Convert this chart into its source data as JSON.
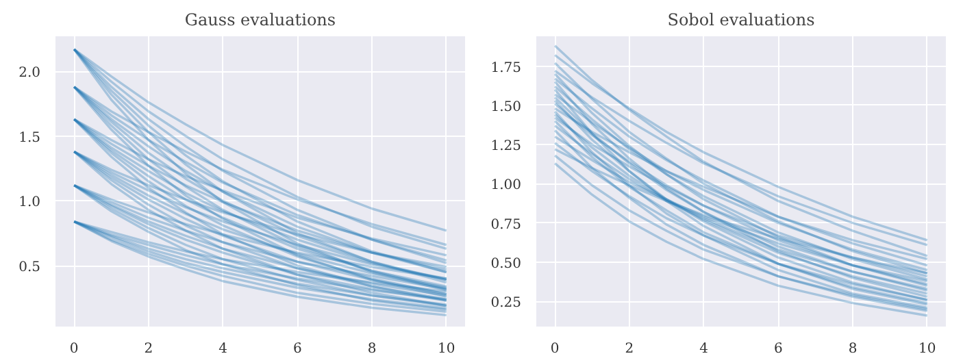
{
  "chart_data": [
    {
      "type": "line",
      "title": "Gauss evaluations",
      "color": "#1f77b4",
      "grid": true,
      "x": [
        0,
        1,
        2,
        3,
        4,
        6,
        8,
        10
      ],
      "xlim": [
        -0.5,
        10.5
      ],
      "xticks": [
        0,
        2,
        4,
        6,
        8,
        10
      ],
      "ylim": [
        0.03,
        2.27
      ],
      "yticks": [
        {
          "value": 0.5,
          "label": "0.5"
        },
        {
          "value": 1,
          "label": "1.0"
        },
        {
          "value": 1.5,
          "label": "1.5"
        },
        {
          "value": 2,
          "label": "2.0"
        }
      ],
      "series": [
        {
          "values": [
            0.84,
            0.76,
            0.68,
            0.61,
            0.55,
            0.45,
            0.37,
            0.3
          ]
        },
        {
          "values": [
            0.84,
            0.74,
            0.66,
            0.58,
            0.51,
            0.4,
            0.31,
            0.24
          ]
        },
        {
          "values": [
            0.84,
            0.73,
            0.63,
            0.55,
            0.48,
            0.36,
            0.27,
            0.2
          ]
        },
        {
          "values": [
            0.84,
            0.72,
            0.61,
            0.52,
            0.45,
            0.33,
            0.24,
            0.17
          ]
        },
        {
          "values": [
            0.84,
            0.7,
            0.59,
            0.5,
            0.42,
            0.29,
            0.205,
            0.144
          ]
        },
        {
          "values": [
            0.84,
            0.69,
            0.57,
            0.47,
            0.38,
            0.26,
            0.175,
            0.118
          ]
        },
        {
          "values": [
            1.12,
            1.01,
            0.91,
            0.82,
            0.74,
            0.6,
            0.49,
            0.4
          ]
        },
        {
          "values": [
            1.12,
            0.99,
            0.87,
            0.77,
            0.68,
            0.53,
            0.42,
            0.32
          ]
        },
        {
          "values": [
            1.12,
            0.97,
            0.84,
            0.73,
            0.63,
            0.48,
            0.36,
            0.27
          ]
        },
        {
          "values": [
            1.12,
            0.96,
            0.82,
            0.7,
            0.6,
            0.43,
            0.32,
            0.23
          ]
        },
        {
          "values": [
            1.12,
            0.94,
            0.79,
            0.66,
            0.55,
            0.39,
            0.27,
            0.19
          ]
        },
        {
          "values": [
            1.12,
            0.92,
            0.76,
            0.62,
            0.51,
            0.35,
            0.23,
            0.16
          ]
        },
        {
          "values": [
            1.38,
            1.24,
            1.12,
            1.01,
            0.91,
            0.74,
            0.6,
            0.49
          ]
        },
        {
          "values": [
            1.38,
            1.22,
            1.08,
            0.95,
            0.84,
            0.66,
            0.51,
            0.4
          ]
        },
        {
          "values": [
            1.38,
            1.2,
            1.04,
            0.9,
            0.78,
            0.59,
            0.44,
            0.33
          ]
        },
        {
          "values": [
            1.38,
            1.18,
            1.01,
            0.86,
            0.73,
            0.53,
            0.39,
            0.28
          ]
        },
        {
          "values": [
            1.38,
            1.16,
            0.97,
            0.81,
            0.68,
            0.48,
            0.34,
            0.24
          ]
        },
        {
          "values": [
            1.38,
            1.13,
            0.93,
            0.77,
            0.63,
            0.43,
            0.29,
            0.19
          ]
        },
        {
          "values": [
            1.63,
            1.47,
            1.32,
            1.19,
            1.08,
            0.87,
            0.71,
            0.58
          ]
        },
        {
          "values": [
            1.63,
            1.44,
            1.27,
            1.12,
            0.99,
            0.77,
            0.6,
            0.47
          ]
        },
        {
          "values": [
            1.63,
            1.41,
            1.23,
            1.06,
            0.92,
            0.7,
            0.52,
            0.39
          ]
        },
        {
          "values": [
            1.63,
            1.39,
            1.19,
            1.01,
            0.87,
            0.63,
            0.46,
            0.34
          ]
        },
        {
          "values": [
            1.63,
            1.37,
            1.15,
            0.96,
            0.81,
            0.57,
            0.4,
            0.28
          ]
        },
        {
          "values": [
            1.63,
            1.34,
            1.1,
            0.91,
            0.74,
            0.5,
            0.34,
            0.23
          ]
        },
        {
          "values": [
            1.88,
            1.69,
            1.53,
            1.38,
            1.24,
            1.01,
            0.82,
            0.66
          ]
        },
        {
          "values": [
            1.88,
            1.66,
            1.47,
            1.3,
            1.14,
            0.89,
            0.7,
            0.54
          ]
        },
        {
          "values": [
            1.88,
            1.63,
            1.42,
            1.23,
            1.07,
            0.8,
            0.6,
            0.45
          ]
        },
        {
          "values": [
            1.88,
            1.61,
            1.37,
            1.17,
            1.0,
            0.73,
            0.53,
            0.39
          ]
        },
        {
          "values": [
            1.88,
            1.58,
            1.32,
            1.11,
            0.93,
            0.65,
            0.46,
            0.32
          ]
        },
        {
          "values": [
            1.88,
            1.55,
            1.27,
            1.04,
            0.86,
            0.58,
            0.39,
            0.26
          ]
        },
        {
          "values": [
            2.17,
            1.96,
            1.76,
            1.59,
            1.43,
            1.16,
            0.94,
            0.77
          ]
        },
        {
          "values": [
            2.17,
            1.92,
            1.69,
            1.5,
            1.32,
            1.03,
            0.8,
            0.63
          ]
        },
        {
          "values": [
            2.17,
            1.88,
            1.63,
            1.42,
            1.23,
            0.93,
            0.7,
            0.52
          ]
        },
        {
          "values": [
            2.17,
            1.85,
            1.58,
            1.35,
            1.15,
            0.84,
            0.61,
            0.45
          ]
        },
        {
          "values": [
            2.17,
            1.82,
            1.53,
            1.28,
            1.07,
            0.75,
            0.53,
            0.37
          ]
        },
        {
          "values": [
            2.17,
            1.78,
            1.47,
            1.21,
            0.99,
            0.67,
            0.45,
            0.31
          ]
        }
      ]
    },
    {
      "type": "line",
      "title": "Sobol evaluations",
      "color": "#1f77b4",
      "grid": true,
      "x": [
        0,
        1,
        2,
        3,
        4,
        6,
        8,
        10
      ],
      "xlim": [
        -0.5,
        10.5
      ],
      "xticks": [
        0,
        2,
        4,
        6,
        8,
        10
      ],
      "ylim": [
        0.09,
        1.94
      ],
      "yticks": [
        {
          "value": 0.25,
          "label": "0.25"
        },
        {
          "value": 0.5,
          "label": "0.50"
        },
        {
          "value": 0.75,
          "label": "0.75"
        },
        {
          "value": 1,
          "label": "1.00"
        },
        {
          "value": 1.25,
          "label": "1.25"
        },
        {
          "value": 1.5,
          "label": "1.50"
        },
        {
          "value": 1.75,
          "label": "1.75"
        }
      ],
      "series": [
        {
          "values": [
            1.88,
            1.66,
            1.47,
            1.3,
            1.14,
            0.89,
            0.7,
            0.54
          ]
        },
        {
          "values": [
            1.82,
            1.64,
            1.48,
            1.33,
            1.2,
            0.98,
            0.79,
            0.64
          ]
        },
        {
          "values": [
            1.77,
            1.54,
            1.33,
            1.16,
            1.0,
            0.76,
            0.57,
            0.43
          ]
        },
        {
          "values": [
            1.72,
            1.55,
            1.4,
            1.26,
            1.13,
            0.92,
            0.75,
            0.61
          ]
        },
        {
          "values": [
            1.7,
            1.45,
            1.24,
            1.06,
            0.9,
            0.66,
            0.48,
            0.35
          ]
        },
        {
          "values": [
            1.67,
            1.48,
            1.3,
            1.15,
            1.02,
            0.79,
            0.62,
            0.48
          ]
        },
        {
          "values": [
            1.65,
            1.38,
            1.16,
            0.97,
            0.82,
            0.57,
            0.4,
            0.28
          ]
        },
        {
          "values": [
            1.62,
            1.41,
            1.22,
            1.06,
            0.92,
            0.69,
            0.52,
            0.39
          ]
        },
        {
          "values": [
            1.6,
            1.32,
            1.08,
            0.89,
            0.73,
            0.49,
            0.33,
            0.23
          ]
        },
        {
          "values": [
            1.57,
            1.39,
            1.23,
            1.08,
            0.96,
            0.75,
            0.58,
            0.45
          ]
        },
        {
          "values": [
            1.55,
            1.32,
            1.13,
            0.96,
            0.82,
            0.6,
            0.44,
            0.32
          ]
        },
        {
          "values": [
            1.53,
            1.28,
            1.08,
            0.9,
            0.76,
            0.53,
            0.37,
            0.26
          ]
        },
        {
          "values": [
            1.51,
            1.31,
            1.14,
            0.99,
            0.86,
            0.64,
            0.48,
            0.36
          ]
        },
        {
          "values": [
            1.48,
            1.33,
            1.2,
            1.08,
            0.98,
            0.79,
            0.64,
            0.52
          ]
        },
        {
          "values": [
            1.46,
            1.2,
            0.99,
            0.81,
            0.67,
            0.45,
            0.3,
            0.21
          ]
        },
        {
          "values": [
            1.44,
            1.23,
            1.05,
            0.9,
            0.77,
            0.56,
            0.41,
            0.3
          ]
        },
        {
          "values": [
            1.42,
            1.25,
            1.11,
            0.98,
            0.86,
            0.67,
            0.53,
            0.41
          ]
        },
        {
          "values": [
            1.4,
            1.17,
            0.98,
            0.83,
            0.69,
            0.49,
            0.34,
            0.24
          ]
        },
        {
          "values": [
            1.37,
            1.19,
            1.03,
            0.89,
            0.78,
            0.58,
            0.44,
            0.33
          ]
        },
        {
          "values": [
            1.34,
            1.1,
            0.91,
            0.74,
            0.61,
            0.41,
            0.28,
            0.19
          ]
        },
        {
          "values": [
            1.3,
            1.15,
            1.01,
            0.9,
            0.79,
            0.62,
            0.48,
            0.38
          ]
        },
        {
          "values": [
            1.26,
            1.08,
            0.92,
            0.78,
            0.67,
            0.49,
            0.36,
            0.26
          ]
        },
        {
          "values": [
            1.22,
            1.1,
            0.99,
            0.89,
            0.8,
            0.65,
            0.53,
            0.43
          ]
        },
        {
          "values": [
            1.18,
            0.99,
            0.83,
            0.7,
            0.58,
            0.41,
            0.29,
            0.2
          ]
        },
        {
          "values": [
            1.13,
            0.93,
            0.76,
            0.63,
            0.52,
            0.35,
            0.24,
            0.16
          ]
        }
      ]
    }
  ]
}
